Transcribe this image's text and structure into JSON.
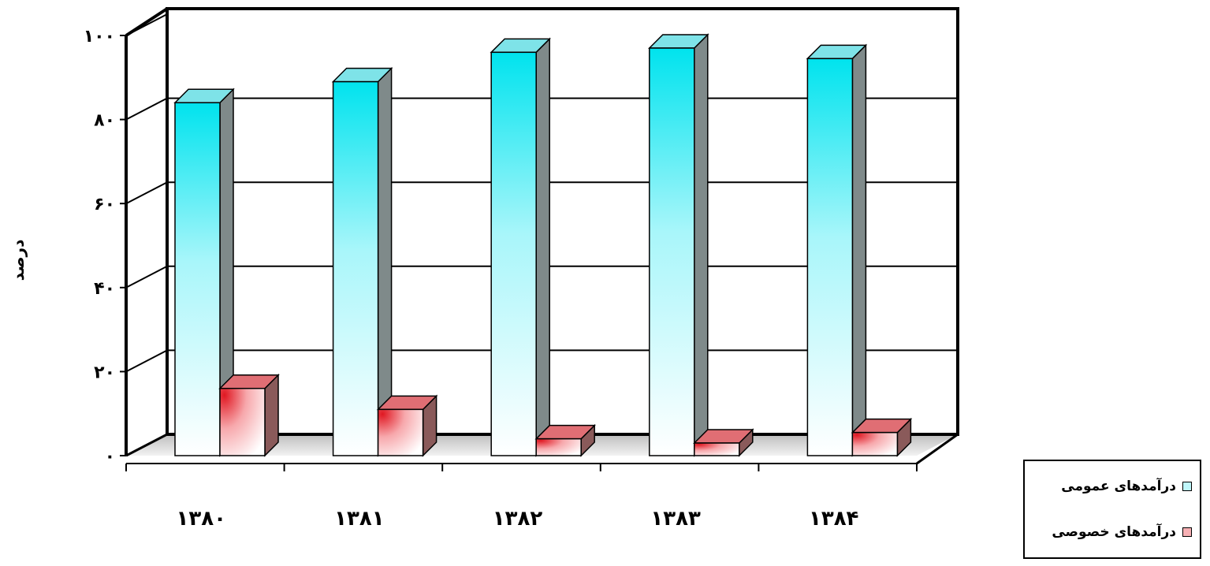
{
  "chart_data": {
    "type": "bar",
    "categories": [
      "۱۳۸۰",
      "۱۳۸۱",
      "۱۳۸۲",
      "۱۳۸۳",
      "۱۳۸۴"
    ],
    "series": [
      {
        "name": "درآمدهای عمومی",
        "values": [
          84,
          89,
          96,
          97,
          94.5
        ],
        "color": "#00e5ee"
      },
      {
        "name": "درآمدهای خصوصی",
        "values": [
          16,
          11,
          4,
          3,
          5.5
        ],
        "color": "#e8202a"
      }
    ],
    "ylim": [
      0,
      100
    ],
    "yticks": [
      0,
      20,
      40,
      60,
      80,
      100
    ],
    "ytick_labels": [
      "۰",
      "۲۰",
      "۴۰",
      "۶۰",
      "۸۰",
      "۱۰۰"
    ],
    "ylabel": "درصد",
    "xlabel": "",
    "title": "",
    "grid": true,
    "three_d": true,
    "legend_position": "bottom-right"
  }
}
